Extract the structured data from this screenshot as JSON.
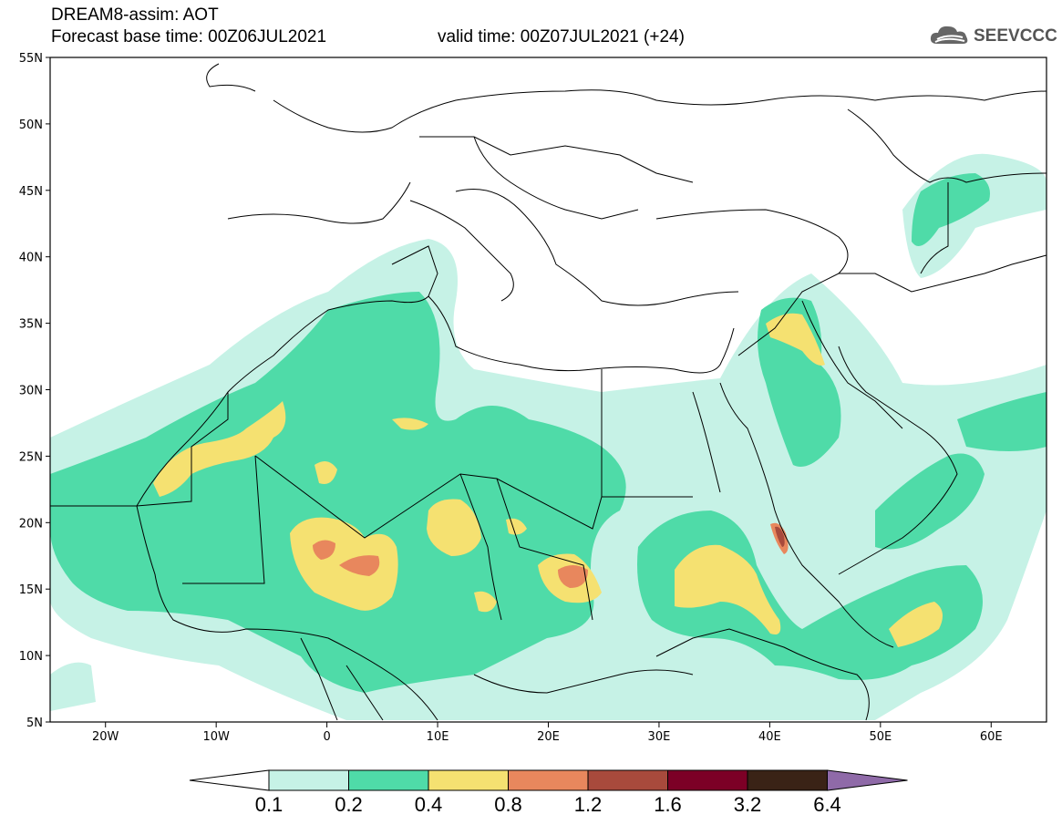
{
  "header": {
    "title": "DREAM8-assim: AOT",
    "base_time": "Forecast base time: 00Z06JUL2021",
    "valid_time": "valid time: 00Z07JUL2021 (+24)"
  },
  "logo": {
    "text": "SEEVCCC",
    "icon": "cloud-icon"
  },
  "map": {
    "lon_range": [
      -25,
      65
    ],
    "lat_range": [
      5,
      55
    ],
    "lon_ticks": [
      "20W",
      "10W",
      "0",
      "10E",
      "20E",
      "30E",
      "40E",
      "50E",
      "60E"
    ],
    "lat_ticks": [
      "55N",
      "50N",
      "45N",
      "40N",
      "35N",
      "30N",
      "25N",
      "20N",
      "15N",
      "10N",
      "5N"
    ]
  },
  "colorbar": {
    "labels": [
      "0.1",
      "0.2",
      "0.4",
      "0.8",
      "1.2",
      "1.6",
      "3.2",
      "6.4"
    ],
    "colors": [
      "#ffffff",
      "#c6f2e6",
      "#4fdba8",
      "#f5e171",
      "#e8875d",
      "#a84a3c",
      "#7c0026",
      "#3a2316",
      "#8f6aa8"
    ]
  }
}
